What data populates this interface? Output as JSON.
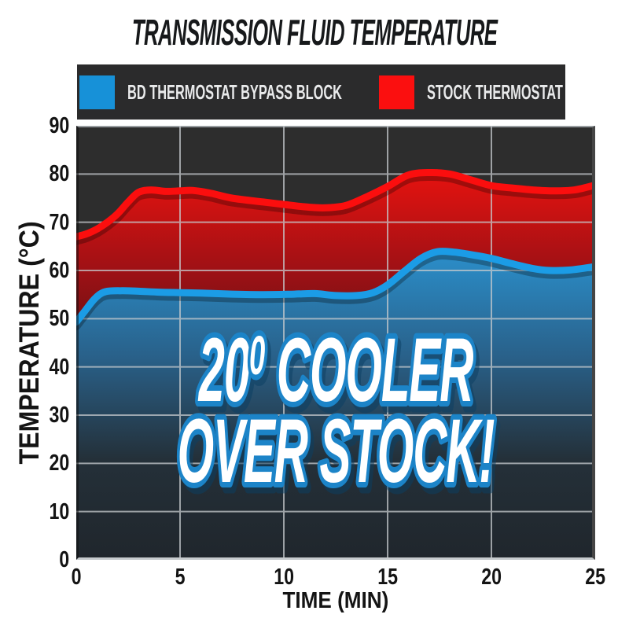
{
  "title": "TRANSMISSION FLUID TEMPERATURE",
  "legend": {
    "items": [
      {
        "label": "BD THERMOSTAT BYPASS BLOCK",
        "color": "#1791d8"
      },
      {
        "label": "STOCK THERMOSTAT",
        "color": "#fb0f0f"
      }
    ]
  },
  "axes": {
    "x_label": "TIME (MIN)",
    "y_label": "TEMPERATURE (°C)"
  },
  "overlay": {
    "line1_prefix": "20",
    "line1_sup": "0",
    "line1_suffix": " COOLER",
    "line2": "OVER STOCK!",
    "text_color": "#ffffff",
    "outline_color": "#1c84c8",
    "shadow_color": "#0b3f63"
  },
  "chart_data": {
    "type": "area",
    "title": "TRANSMISSION FLUID TEMPERATURE",
    "xlabel": "TIME (MIN)",
    "ylabel": "TEMPERATURE (°C)",
    "xlim": [
      0,
      25
    ],
    "ylim": [
      0,
      90
    ],
    "xticks": [
      0,
      5,
      10,
      15,
      20,
      25
    ],
    "yticks": [
      0,
      10,
      20,
      30,
      40,
      50,
      60,
      70,
      80,
      90
    ],
    "grid": true,
    "legend_position": "top",
    "plot_bg": "#2d2d2d",
    "grid_color": "#c6cacd",
    "annotation": "20⁰ COOLER OVER STOCK!",
    "series": [
      {
        "name": "BD THERMOSTAT BYPASS BLOCK",
        "line_color": "#1b9ce6",
        "fill_gradient": [
          "#2b8dc8",
          "#29618a",
          "#243039",
          "#20262c"
        ],
        "points": [
          [
            0,
            49.3
          ],
          [
            0.4,
            51.5
          ],
          [
            0.9,
            54.2
          ],
          [
            1.4,
            55.6
          ],
          [
            2.2,
            55.8
          ],
          [
            3,
            55.7
          ],
          [
            4,
            55.5
          ],
          [
            5,
            55.4
          ],
          [
            6,
            55.3
          ],
          [
            7.5,
            55.1
          ],
          [
            9,
            55
          ],
          [
            10.5,
            55.1
          ],
          [
            11.5,
            55.2
          ],
          [
            12.5,
            54.8
          ],
          [
            13.5,
            54.8
          ],
          [
            14.3,
            55.4
          ],
          [
            15,
            57
          ],
          [
            15.8,
            59.8
          ],
          [
            16.6,
            62.5
          ],
          [
            17.4,
            63.9
          ],
          [
            18.2,
            63.8
          ],
          [
            19,
            63.3
          ],
          [
            20,
            62.5
          ],
          [
            21,
            61.4
          ],
          [
            22,
            60.4
          ],
          [
            22.8,
            60
          ],
          [
            23.8,
            60.1
          ],
          [
            25,
            60.8
          ]
        ]
      },
      {
        "name": "STOCK THERMOSTAT",
        "line_color": "#fb0e0e",
        "fill_gradient": [
          "#e8120f",
          "#9f1115",
          "#571013"
        ],
        "points": [
          [
            0,
            67
          ],
          [
            0.5,
            67.6
          ],
          [
            1,
            68.6
          ],
          [
            1.5,
            70
          ],
          [
            2,
            71.8
          ],
          [
            2.5,
            74.2
          ],
          [
            3,
            76.2
          ],
          [
            3.6,
            76.7
          ],
          [
            4.3,
            76.4
          ],
          [
            5,
            76.5
          ],
          [
            5.6,
            76.6
          ],
          [
            6.5,
            76
          ],
          [
            7.5,
            75
          ],
          [
            9,
            74.2
          ],
          [
            10,
            73.7
          ],
          [
            11,
            73.2
          ],
          [
            12,
            73
          ],
          [
            13,
            73.5
          ],
          [
            14,
            75.3
          ],
          [
            15,
            77.4
          ],
          [
            16,
            79.8
          ],
          [
            17,
            80.3
          ],
          [
            18,
            80
          ],
          [
            19,
            78.8
          ],
          [
            20,
            77.6
          ],
          [
            21,
            77.1
          ],
          [
            22,
            76.7
          ],
          [
            23,
            76.5
          ],
          [
            24,
            76.7
          ],
          [
            25,
            77.7
          ]
        ]
      }
    ]
  }
}
